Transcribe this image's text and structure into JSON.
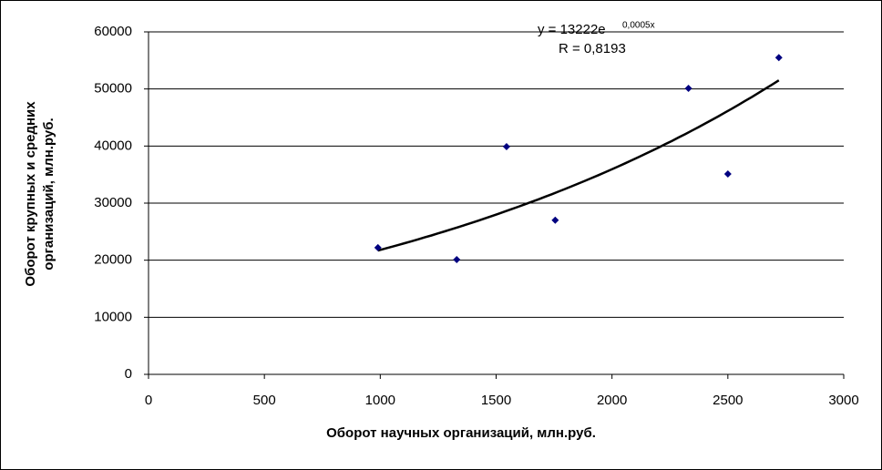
{
  "chart_data": {
    "type": "scatter",
    "xlabel": "Оборот научных организаций, млн.руб.",
    "ylabel": [
      "Оборот крупных и средних",
      "организаций, млн.руб."
    ],
    "series": [
      {
        "color": "#000080",
        "x": [
          990,
          1330,
          1545,
          1755,
          2330,
          2500,
          2720
        ],
        "values": [
          22200,
          20100,
          39900,
          27000,
          50100,
          35100,
          55500
        ]
      }
    ],
    "trendline": {
      "label": "y = 13222e",
      "exponent_label": "0,0005x",
      "r_label": "R = 0,8193",
      "a": 13222,
      "b": 0.0005,
      "color": "#000000"
    },
    "xlim": [
      0,
      3000
    ],
    "xticks": [
      0,
      500,
      1000,
      1500,
      2000,
      2500,
      3000
    ],
    "ylim": [
      0,
      60000
    ],
    "yticks": [
      0,
      10000,
      20000,
      30000,
      40000,
      50000,
      60000
    ],
    "grid": true
  }
}
